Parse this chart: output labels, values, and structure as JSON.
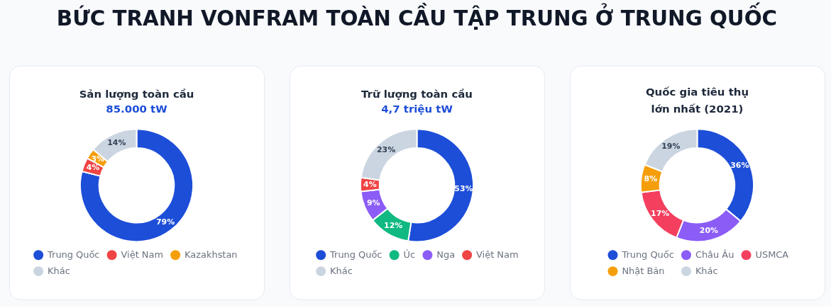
{
  "chart_data": [
    {
      "type": "donut",
      "title": "Sản lượng toàn cầu",
      "subtitle": "85.000 tW",
      "annotations": [
        "BỨC TRANH VONFRAM TOÀN CẦU TẬP TRUNG Ở TRUNG QUỐC"
      ],
      "categories": [
        "Trung Quốc",
        "Việt Nam",
        "Kazakhstan",
        "Khác"
      ],
      "values": [
        79,
        4,
        3,
        14
      ],
      "colors": [
        "#1d4ed8",
        "#ef4444",
        "#f59e0b",
        "#cbd5e1"
      ],
      "value_labels": [
        "79%",
        "4%",
        "3%",
        "14%"
      ],
      "legend": "bottom"
    },
    {
      "type": "donut",
      "title": "Trữ lượng toàn cầu",
      "subtitle": "4,7 triệu tW",
      "categories": [
        "Trung Quốc",
        "Úc",
        "Nga",
        "Việt Nam",
        "Khác"
      ],
      "values": [
        53,
        12,
        9,
        4,
        23
      ],
      "colors": [
        "#1d4ed8",
        "#10b981",
        "#8b5cf6",
        "#ef4444",
        "#cbd5e1"
      ],
      "value_labels": [
        "53%",
        "12%",
        "9%",
        "4%",
        "23%"
      ],
      "legend": "bottom"
    },
    {
      "type": "donut",
      "title": "Quốc gia tiêu thụ lớn nhất (2021)",
      "categories": [
        "Trung Quốc",
        "Châu Âu",
        "USMCA",
        "Nhật Bản",
        "Khác"
      ],
      "values": [
        36,
        20,
        17,
        8,
        19
      ],
      "colors": [
        "#1d4ed8",
        "#8b5cf6",
        "#f43f5e",
        "#f59e0b",
        "#cbd5e1"
      ],
      "value_labels": [
        "36%",
        "20%",
        "17%",
        "8%",
        "19%"
      ],
      "legend": "bottom"
    }
  ]
}
